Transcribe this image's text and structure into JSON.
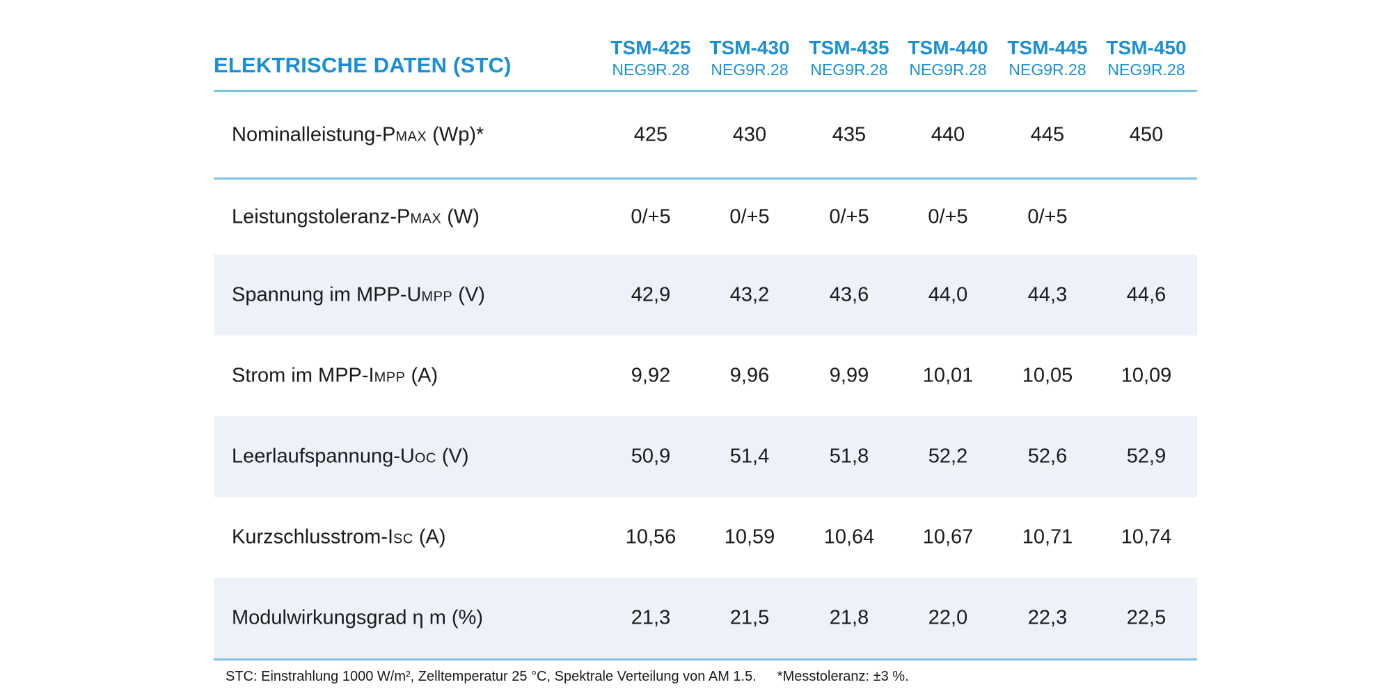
{
  "section_title": "ELEKTRISCHE DATEN (STC)",
  "models": [
    {
      "name": "TSM-425",
      "variant": "NEG9R.28"
    },
    {
      "name": "TSM-430",
      "variant": "NEG9R.28"
    },
    {
      "name": "TSM-435",
      "variant": "NEG9R.28"
    },
    {
      "name": "TSM-440",
      "variant": "NEG9R.28"
    },
    {
      "name": "TSM-445",
      "variant": "NEG9R.28"
    },
    {
      "name": "TSM-450",
      "variant": "NEG9R.28"
    }
  ],
  "rows": [
    {
      "label": "Nominalleistung-P",
      "sub": "MAX",
      "unit": " (Wp)*",
      "values": [
        "425",
        "430",
        "435",
        "440",
        "445",
        "450"
      ]
    },
    {
      "label": "Leistungstoleranz-P",
      "sub": "MAX",
      "unit": " (W)",
      "values": [
        "0/+5",
        "0/+5",
        "0/+5",
        "0/+5",
        "0/+5",
        ""
      ]
    },
    {
      "label": "Spannung im MPP-U",
      "sub": "MPP",
      "unit": " (V)",
      "values": [
        "42,9",
        "43,2",
        "43,6",
        "44,0",
        "44,3",
        "44,6"
      ]
    },
    {
      "label": "Strom im MPP-I",
      "sub": "MPP",
      "unit": " (A)",
      "values": [
        "9,92",
        "9,96",
        "9,99",
        "10,01",
        "10,05",
        "10,09"
      ]
    },
    {
      "label": "Leerlaufspannung-U",
      "sub": "OC",
      "unit": " (V)",
      "values": [
        "50,9",
        "51,4",
        "51,8",
        "52,2",
        "52,6",
        "52,9"
      ]
    },
    {
      "label": "Kurzschlusstrom-I",
      "sub": "SC",
      "unit": " (A)",
      "values": [
        "10,56",
        "10,59",
        "10,64",
        "10,67",
        "10,71",
        "10,74"
      ]
    },
    {
      "label": "Modulwirkungsgrad η m",
      "sub": "",
      "unit": " (%)",
      "values": [
        "21,3",
        "21,5",
        "21,8",
        "22,0",
        "22,3",
        "22,5"
      ]
    }
  ],
  "footnote": {
    "stc": "STC: Einstrahlung 1000 W/m², Zelltemperatur 25 °C,  Spektrale Verteilung von AM 1.5.",
    "tolerance": "*Messtoleranz: ±3 %."
  }
}
